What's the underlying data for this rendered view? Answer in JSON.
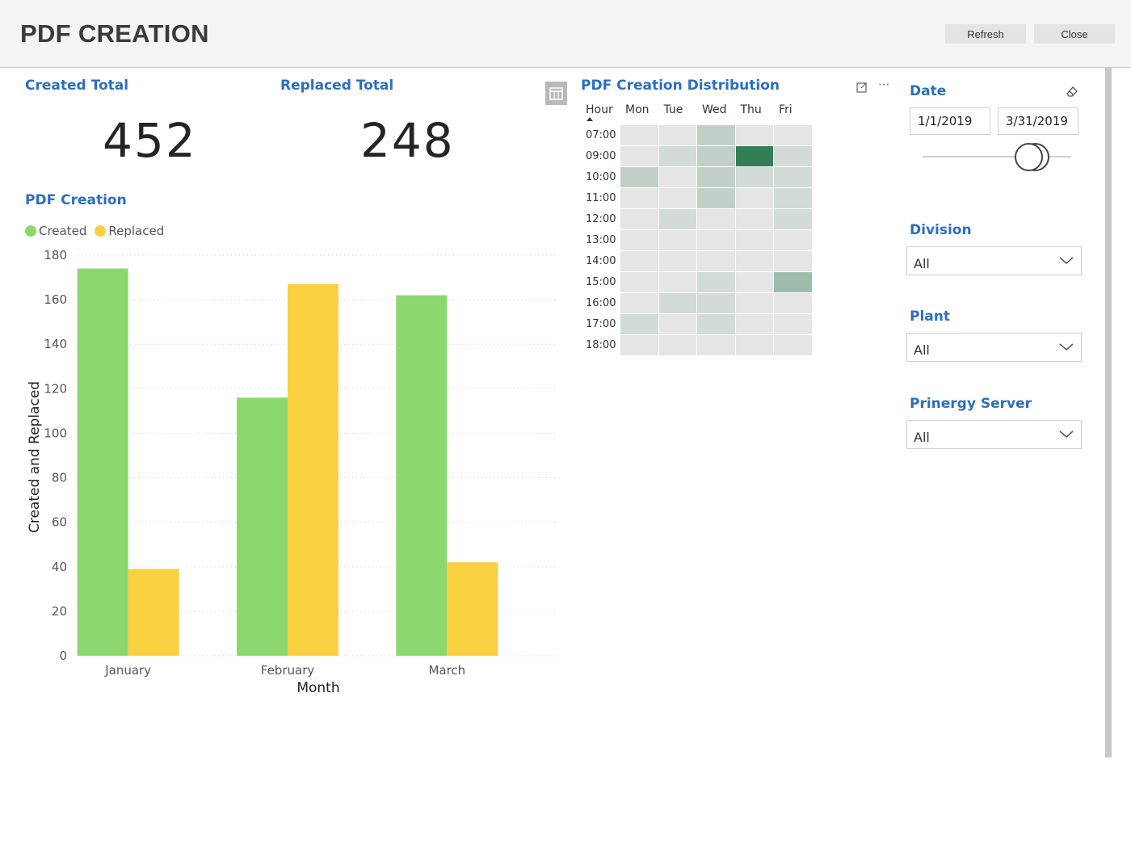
{
  "header": {
    "title": "PDF CREATION",
    "refresh_label": "Refresh",
    "close_label": "Close"
  },
  "kpis": [
    {
      "title": "Created Total",
      "value": "452"
    },
    {
      "title": "Replaced Total",
      "value": "248"
    }
  ],
  "chart_data": {
    "type": "bar",
    "title": "PDF Creation",
    "categories": [
      "January",
      "February",
      "March"
    ],
    "series": [
      {
        "name": "Created",
        "color": "#8cd86e",
        "values": [
          174,
          116,
          162
        ]
      },
      {
        "name": "Replaced",
        "color": "#f9d03f",
        "values": [
          39,
          167,
          42
        ]
      }
    ],
    "xlabel": "Month",
    "ylabel": "Created and Replaced",
    "ylim": [
      0,
      180
    ],
    "yticks": [
      0,
      20,
      40,
      60,
      80,
      100,
      120,
      140,
      160,
      180
    ],
    "grid": true,
    "legend_position": "top-left"
  },
  "heatmap": {
    "title": "PDF Creation Distribution",
    "row_header": "Hour",
    "columns": [
      "Mon",
      "Tue",
      "Wed",
      "Thu",
      "Fri"
    ],
    "rows": [
      "07:00",
      "09:00",
      "10:00",
      "11:00",
      "12:00",
      "13:00",
      "14:00",
      "15:00",
      "16:00",
      "17:00",
      "18:00"
    ],
    "levels": [
      [
        0,
        0,
        2,
        0,
        0
      ],
      [
        0,
        1,
        2,
        10,
        1
      ],
      [
        2,
        0,
        2,
        1,
        1
      ],
      [
        0,
        0,
        2,
        0,
        1
      ],
      [
        0,
        1,
        0,
        0,
        1
      ],
      [
        0,
        0,
        0,
        0,
        0
      ],
      [
        0,
        0,
        0,
        0,
        0
      ],
      [
        0,
        0,
        1,
        0,
        4
      ],
      [
        0,
        1,
        1,
        0,
        0
      ],
      [
        1,
        0,
        1,
        0,
        0
      ],
      [
        0,
        0,
        0,
        0,
        0
      ]
    ],
    "base_color": "#e4e5e4",
    "max_color": "#347e55",
    "focus_icon": "focus-mode-icon",
    "more_icon": "more-options-icon"
  },
  "slicers": {
    "date": {
      "title": "Date",
      "start": "1/1/2019",
      "end": "3/31/2019",
      "eraser_icon": "eraser-icon"
    },
    "division": {
      "title": "Division",
      "value": "All"
    },
    "plant": {
      "title": "Plant",
      "value": "All"
    },
    "server": {
      "title": "Prinergy Server",
      "value": "All"
    }
  }
}
